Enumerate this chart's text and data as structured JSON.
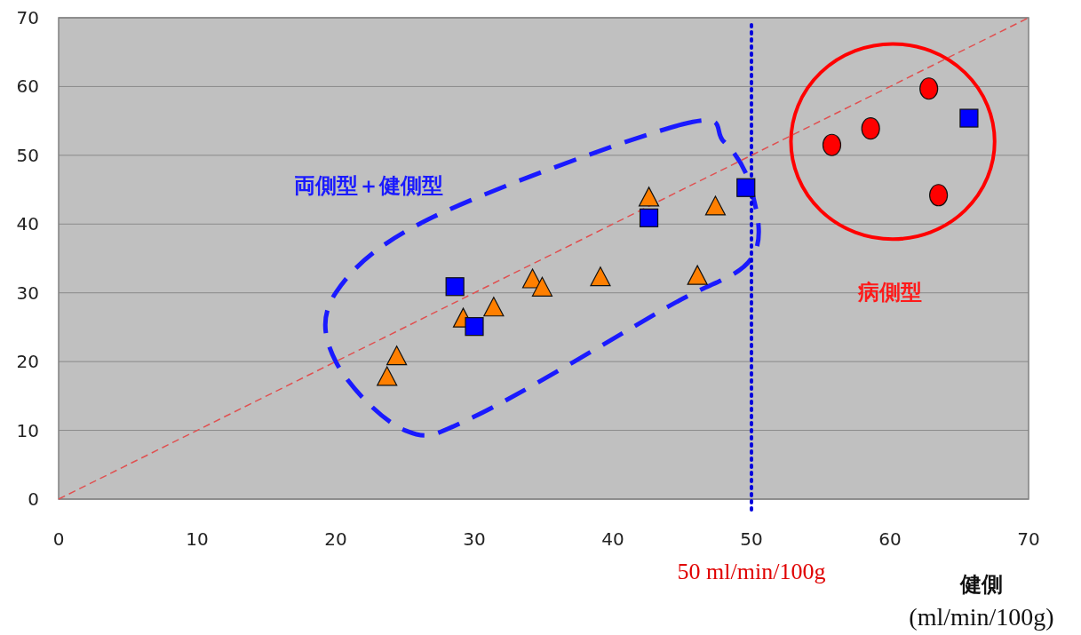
{
  "chart_data": {
    "type": "scatter",
    "xlabel": "健側\n(ml/min/100g)",
    "xlim": [
      0,
      70
    ],
    "ylim": [
      0,
      70
    ],
    "xticks": [
      0,
      10,
      20,
      30,
      40,
      50,
      60,
      70
    ],
    "yticks": [
      0,
      10,
      20,
      30,
      40,
      50,
      60,
      70
    ],
    "grid": "y",
    "series": [
      {
        "type": "line",
        "color": "#e05050",
        "line_style": "dashed",
        "marker": "none",
        "x": [
          0,
          70
        ],
        "values": [
          0,
          70
        ]
      },
      {
        "type": "scatter",
        "color": "#ff7f00",
        "marker": "triangle",
        "x": [
          23.7,
          24.4,
          29.2,
          31.4,
          34.2,
          34.9,
          39.1,
          42.6,
          46.1,
          47.4
        ],
        "values": [
          17.7,
          20.7,
          26.2,
          27.8,
          31.9,
          30.7,
          32.2,
          43.8,
          32.4,
          42.5
        ]
      },
      {
        "type": "scatter",
        "color": "#0000ff",
        "marker": "square",
        "x": [
          28.6,
          30.0,
          42.6,
          49.6,
          65.7
        ],
        "values": [
          30.9,
          25.1,
          40.9,
          45.3,
          55.4
        ]
      },
      {
        "type": "scatter",
        "color": "#ff0000",
        "marker": "circle",
        "x": [
          55.8,
          58.6,
          62.8,
          63.5
        ],
        "values": [
          51.5,
          53.9,
          59.7,
          44.2
        ]
      }
    ],
    "ref_lines": [
      {
        "axis": "x",
        "value": 50,
        "label": "50 ml/min/100g",
        "color": "#0000dd",
        "line_style": "dotted"
      }
    ],
    "annotations": [
      "両側型＋健側型",
      "病側型"
    ]
  }
}
